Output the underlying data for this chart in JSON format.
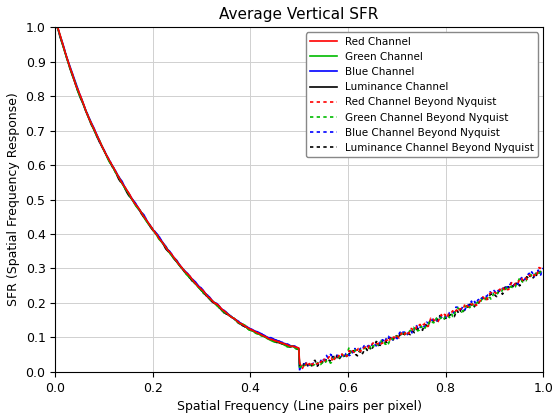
{
  "title": "Average Vertical SFR",
  "xlabel": "Spatial Frequency (Line pairs per pixel)",
  "ylabel": "SFR (Spatial Frequency Response)",
  "xlim": [
    0,
    1.0
  ],
  "ylim": [
    0,
    1.0
  ],
  "yticks": [
    0.0,
    0.1,
    0.2,
    0.3,
    0.4,
    0.5,
    0.6,
    0.7,
    0.8,
    0.9,
    1.0
  ],
  "xticks": [
    0.0,
    0.2,
    0.4,
    0.6,
    0.8,
    1.0
  ],
  "channels": {
    "red": {
      "color": "#ff0000",
      "label": "Red Channel",
      "label_bn": "Red Channel Beyond Nyquist"
    },
    "green": {
      "color": "#00bb00",
      "label": "Green Channel",
      "label_bn": "Green Channel Beyond Nyquist"
    },
    "blue": {
      "color": "#0000ff",
      "label": "Blue Channel",
      "label_bn": "Blue Channel Beyond Nyquist"
    },
    "lum": {
      "color": "#000000",
      "label": "Luminance Channel",
      "label_bn": "Luminance Channel Beyond Nyquist"
    }
  },
  "nyquist": 0.5,
  "figsize": [
    5.6,
    4.2
  ],
  "dpi": 100
}
